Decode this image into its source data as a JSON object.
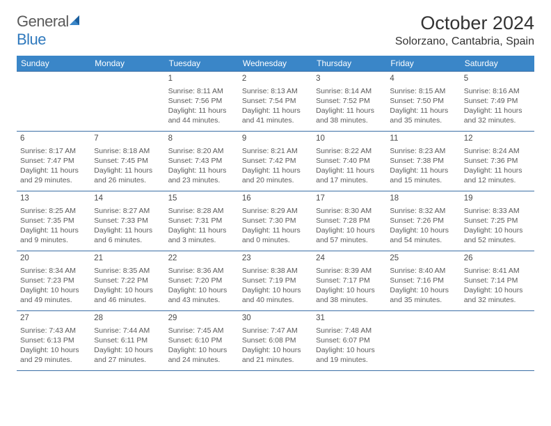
{
  "brand": {
    "word1": "General",
    "word2": "Blue"
  },
  "title": "October 2024",
  "location": "Solorzano, Cantabria, Spain",
  "colors": {
    "header_bg": "#3a86c8",
    "header_text": "#ffffff",
    "border": "#3a6ea5",
    "body_text": "#5a5a5a",
    "brand_gray": "#5a5a5a",
    "brand_blue": "#2f79bd",
    "sail_blue": "#1b5f9e"
  },
  "day_headers": [
    "Sunday",
    "Monday",
    "Tuesday",
    "Wednesday",
    "Thursday",
    "Friday",
    "Saturday"
  ],
  "weeks": [
    [
      null,
      null,
      {
        "n": "1",
        "sunrise": "Sunrise: 8:11 AM",
        "sunset": "Sunset: 7:56 PM",
        "daylight1": "Daylight: 11 hours",
        "daylight2": "and 44 minutes."
      },
      {
        "n": "2",
        "sunrise": "Sunrise: 8:13 AM",
        "sunset": "Sunset: 7:54 PM",
        "daylight1": "Daylight: 11 hours",
        "daylight2": "and 41 minutes."
      },
      {
        "n": "3",
        "sunrise": "Sunrise: 8:14 AM",
        "sunset": "Sunset: 7:52 PM",
        "daylight1": "Daylight: 11 hours",
        "daylight2": "and 38 minutes."
      },
      {
        "n": "4",
        "sunrise": "Sunrise: 8:15 AM",
        "sunset": "Sunset: 7:50 PM",
        "daylight1": "Daylight: 11 hours",
        "daylight2": "and 35 minutes."
      },
      {
        "n": "5",
        "sunrise": "Sunrise: 8:16 AM",
        "sunset": "Sunset: 7:49 PM",
        "daylight1": "Daylight: 11 hours",
        "daylight2": "and 32 minutes."
      }
    ],
    [
      {
        "n": "6",
        "sunrise": "Sunrise: 8:17 AM",
        "sunset": "Sunset: 7:47 PM",
        "daylight1": "Daylight: 11 hours",
        "daylight2": "and 29 minutes."
      },
      {
        "n": "7",
        "sunrise": "Sunrise: 8:18 AM",
        "sunset": "Sunset: 7:45 PM",
        "daylight1": "Daylight: 11 hours",
        "daylight2": "and 26 minutes."
      },
      {
        "n": "8",
        "sunrise": "Sunrise: 8:20 AM",
        "sunset": "Sunset: 7:43 PM",
        "daylight1": "Daylight: 11 hours",
        "daylight2": "and 23 minutes."
      },
      {
        "n": "9",
        "sunrise": "Sunrise: 8:21 AM",
        "sunset": "Sunset: 7:42 PM",
        "daylight1": "Daylight: 11 hours",
        "daylight2": "and 20 minutes."
      },
      {
        "n": "10",
        "sunrise": "Sunrise: 8:22 AM",
        "sunset": "Sunset: 7:40 PM",
        "daylight1": "Daylight: 11 hours",
        "daylight2": "and 17 minutes."
      },
      {
        "n": "11",
        "sunrise": "Sunrise: 8:23 AM",
        "sunset": "Sunset: 7:38 PM",
        "daylight1": "Daylight: 11 hours",
        "daylight2": "and 15 minutes."
      },
      {
        "n": "12",
        "sunrise": "Sunrise: 8:24 AM",
        "sunset": "Sunset: 7:36 PM",
        "daylight1": "Daylight: 11 hours",
        "daylight2": "and 12 minutes."
      }
    ],
    [
      {
        "n": "13",
        "sunrise": "Sunrise: 8:25 AM",
        "sunset": "Sunset: 7:35 PM",
        "daylight1": "Daylight: 11 hours",
        "daylight2": "and 9 minutes."
      },
      {
        "n": "14",
        "sunrise": "Sunrise: 8:27 AM",
        "sunset": "Sunset: 7:33 PM",
        "daylight1": "Daylight: 11 hours",
        "daylight2": "and 6 minutes."
      },
      {
        "n": "15",
        "sunrise": "Sunrise: 8:28 AM",
        "sunset": "Sunset: 7:31 PM",
        "daylight1": "Daylight: 11 hours",
        "daylight2": "and 3 minutes."
      },
      {
        "n": "16",
        "sunrise": "Sunrise: 8:29 AM",
        "sunset": "Sunset: 7:30 PM",
        "daylight1": "Daylight: 11 hours",
        "daylight2": "and 0 minutes."
      },
      {
        "n": "17",
        "sunrise": "Sunrise: 8:30 AM",
        "sunset": "Sunset: 7:28 PM",
        "daylight1": "Daylight: 10 hours",
        "daylight2": "and 57 minutes."
      },
      {
        "n": "18",
        "sunrise": "Sunrise: 8:32 AM",
        "sunset": "Sunset: 7:26 PM",
        "daylight1": "Daylight: 10 hours",
        "daylight2": "and 54 minutes."
      },
      {
        "n": "19",
        "sunrise": "Sunrise: 8:33 AM",
        "sunset": "Sunset: 7:25 PM",
        "daylight1": "Daylight: 10 hours",
        "daylight2": "and 52 minutes."
      }
    ],
    [
      {
        "n": "20",
        "sunrise": "Sunrise: 8:34 AM",
        "sunset": "Sunset: 7:23 PM",
        "daylight1": "Daylight: 10 hours",
        "daylight2": "and 49 minutes."
      },
      {
        "n": "21",
        "sunrise": "Sunrise: 8:35 AM",
        "sunset": "Sunset: 7:22 PM",
        "daylight1": "Daylight: 10 hours",
        "daylight2": "and 46 minutes."
      },
      {
        "n": "22",
        "sunrise": "Sunrise: 8:36 AM",
        "sunset": "Sunset: 7:20 PM",
        "daylight1": "Daylight: 10 hours",
        "daylight2": "and 43 minutes."
      },
      {
        "n": "23",
        "sunrise": "Sunrise: 8:38 AM",
        "sunset": "Sunset: 7:19 PM",
        "daylight1": "Daylight: 10 hours",
        "daylight2": "and 40 minutes."
      },
      {
        "n": "24",
        "sunrise": "Sunrise: 8:39 AM",
        "sunset": "Sunset: 7:17 PM",
        "daylight1": "Daylight: 10 hours",
        "daylight2": "and 38 minutes."
      },
      {
        "n": "25",
        "sunrise": "Sunrise: 8:40 AM",
        "sunset": "Sunset: 7:16 PM",
        "daylight1": "Daylight: 10 hours",
        "daylight2": "and 35 minutes."
      },
      {
        "n": "26",
        "sunrise": "Sunrise: 8:41 AM",
        "sunset": "Sunset: 7:14 PM",
        "daylight1": "Daylight: 10 hours",
        "daylight2": "and 32 minutes."
      }
    ],
    [
      {
        "n": "27",
        "sunrise": "Sunrise: 7:43 AM",
        "sunset": "Sunset: 6:13 PM",
        "daylight1": "Daylight: 10 hours",
        "daylight2": "and 29 minutes."
      },
      {
        "n": "28",
        "sunrise": "Sunrise: 7:44 AM",
        "sunset": "Sunset: 6:11 PM",
        "daylight1": "Daylight: 10 hours",
        "daylight2": "and 27 minutes."
      },
      {
        "n": "29",
        "sunrise": "Sunrise: 7:45 AM",
        "sunset": "Sunset: 6:10 PM",
        "daylight1": "Daylight: 10 hours",
        "daylight2": "and 24 minutes."
      },
      {
        "n": "30",
        "sunrise": "Sunrise: 7:47 AM",
        "sunset": "Sunset: 6:08 PM",
        "daylight1": "Daylight: 10 hours",
        "daylight2": "and 21 minutes."
      },
      {
        "n": "31",
        "sunrise": "Sunrise: 7:48 AM",
        "sunset": "Sunset: 6:07 PM",
        "daylight1": "Daylight: 10 hours",
        "daylight2": "and 19 minutes."
      },
      null,
      null
    ]
  ]
}
